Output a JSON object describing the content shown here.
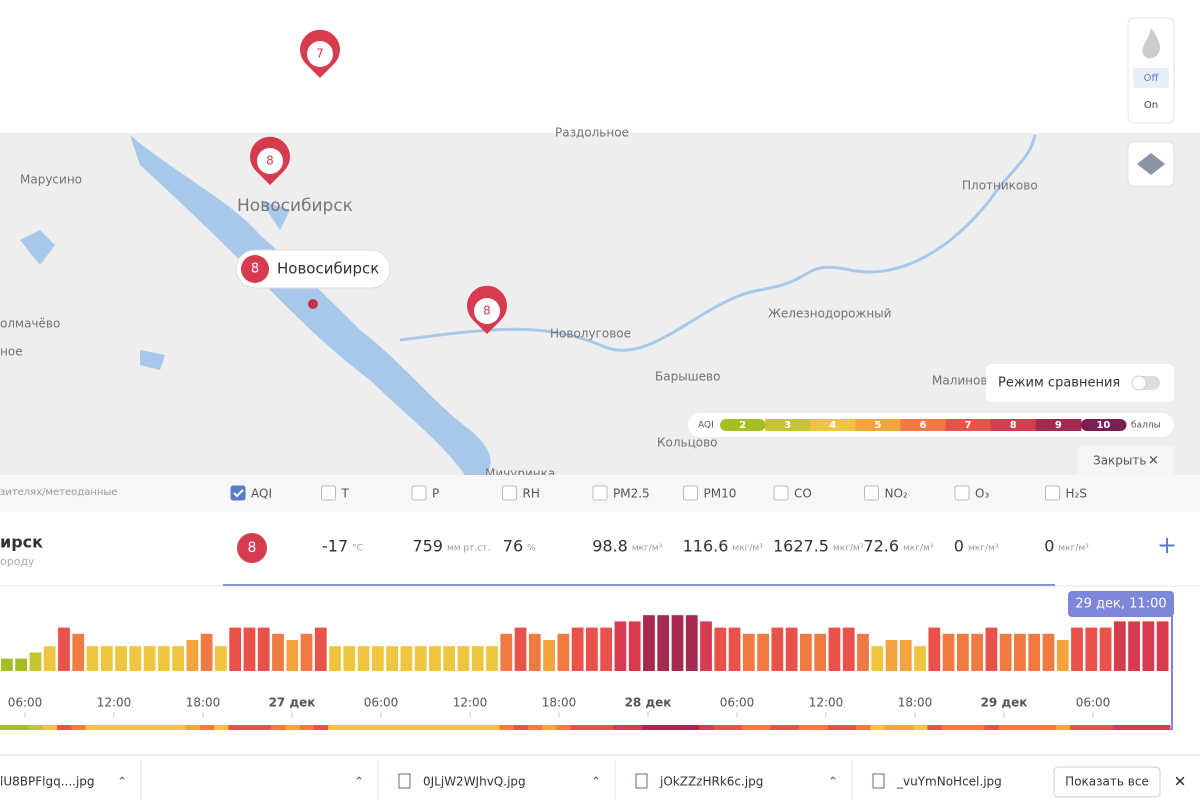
{
  "map": {
    "places": [
      "Раздольное",
      "Марусино",
      "Новосибирск",
      "Плотниково",
      "Железнодорожный",
      "Новолуговое",
      "Барышево",
      "Кольцово",
      "Малинов",
      "олмачёво",
      "ное",
      "Мичуринка"
    ],
    "markers": [
      "7",
      "8",
      "8"
    ],
    "city_popup": {
      "aqi": "8",
      "name": "Новосибирск"
    },
    "fire_toggle": {
      "off": "Off",
      "on": "On"
    },
    "compare_mode": "Режим сравнения",
    "aqi_legend": {
      "label": "AQI",
      "levels": [
        2,
        3,
        4,
        5,
        6,
        7,
        8,
        9,
        10
      ],
      "unit": "баллы",
      "colors": [
        "#a3bf25",
        "#c6c531",
        "#efc53f",
        "#f4a43e",
        "#ef7b43",
        "#e9514b",
        "#d63b50",
        "#a6294f",
        "#7b1e55"
      ]
    },
    "close": "Закрыть"
  },
  "panel": {
    "source_hint": "зителях/метеоданные",
    "columns": [
      {
        "label": "AQI",
        "checked": true
      },
      {
        "label": "T",
        "checked": false
      },
      {
        "label": "P",
        "checked": false
      },
      {
        "label": "RH",
        "checked": false
      },
      {
        "label": "PM2.5",
        "checked": false
      },
      {
        "label": "PM10",
        "checked": false
      },
      {
        "label": "CO",
        "checked": false
      },
      {
        "label": "NO₂",
        "checked": false
      },
      {
        "label": "O₃",
        "checked": false
      },
      {
        "label": "H₂S",
        "checked": false
      }
    ],
    "station": {
      "name": "ирск",
      "subtitle": "ороду"
    },
    "readings": [
      {
        "value": "8"
      },
      {
        "value": "-17",
        "unit": "°C"
      },
      {
        "value": "759",
        "unit": "мм рт.ст."
      },
      {
        "value": "76",
        "unit": "%"
      },
      {
        "value": "98.8",
        "unit": "мкг/м³"
      },
      {
        "value": "116.6",
        "unit": "мкг/м³"
      },
      {
        "value": "1627.5",
        "unit": "мкг/м³"
      },
      {
        "value": "72.6",
        "unit": "мкг/м³"
      },
      {
        "value": "0",
        "unit": "мкг/м³"
      },
      {
        "value": "0",
        "unit": "мкг/м³"
      }
    ]
  },
  "timeline": {
    "current": "29 дек, 11:00",
    "values": [
      2,
      2,
      3,
      4,
      7,
      6,
      4,
      4,
      4,
      4,
      4,
      4,
      4,
      5,
      6,
      4,
      7,
      7,
      7,
      6,
      5,
      6,
      7,
      4,
      4,
      4,
      4,
      4,
      4,
      4,
      4,
      4,
      4,
      4,
      4,
      6,
      7,
      6,
      5,
      6,
      7,
      7,
      7,
      8,
      8,
      9,
      9,
      9,
      9,
      8,
      7,
      7,
      6,
      6,
      7,
      7,
      6,
      6,
      7,
      7,
      6,
      4,
      5,
      5,
      4,
      7,
      6,
      6,
      6,
      7,
      6,
      6,
      6,
      6,
      5,
      7,
      7,
      7,
      8,
      8,
      8,
      8
    ],
    "axis_labels": [
      "06:00",
      "12:00",
      "18:00",
      "27 дек",
      "06:00",
      "12:00",
      "18:00",
      "28 дек",
      "06:00",
      "12:00",
      "18:00",
      "29 дек",
      "06:00"
    ]
  },
  "downloads": {
    "files": [
      "lU8BPFlgq....jpg",
      "0JLjW2WJhvQ.jpg",
      "jOkZZzHRk6c.jpg",
      "_vuYmNoHcel.jpg"
    ],
    "show_all": "Показать все"
  }
}
